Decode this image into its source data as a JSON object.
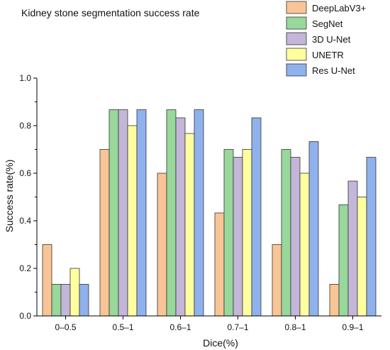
{
  "chart_data": {
    "type": "bar",
    "title": "Kidney stone segmentation success rate",
    "xlabel": "Dice(%)",
    "ylabel": "Success rate(%)",
    "ylim": [
      0,
      1.0
    ],
    "yticks": [
      "0.0",
      "0.2",
      "0.4",
      "0.6",
      "0.8",
      "1.0"
    ],
    "categories": [
      "0–0.5",
      "0.5–1",
      "0.6–1",
      "0.7–1",
      "0.8–1",
      "0.9–1"
    ],
    "series": [
      {
        "name": "DeepLabV3+",
        "color": "#F9C596",
        "values": [
          0.3,
          0.7,
          0.6,
          0.433,
          0.3,
          0.133
        ]
      },
      {
        "name": "SegNet",
        "color": "#98D89B",
        "values": [
          0.133,
          0.867,
          0.867,
          0.7,
          0.7,
          0.467
        ]
      },
      {
        "name": "3D U-Net",
        "color": "#C3B6D9",
        "values": [
          0.133,
          0.867,
          0.833,
          0.667,
          0.667,
          0.567
        ]
      },
      {
        "name": "UNETR",
        "color": "#FFFFA0",
        "values": [
          0.2,
          0.8,
          0.767,
          0.7,
          0.6,
          0.5
        ]
      },
      {
        "name": "Res U-Net",
        "color": "#8FB1EE",
        "values": [
          0.133,
          0.867,
          0.867,
          0.833,
          0.733,
          0.667
        ]
      }
    ],
    "legend_position": "top-right",
    "grid": false
  }
}
